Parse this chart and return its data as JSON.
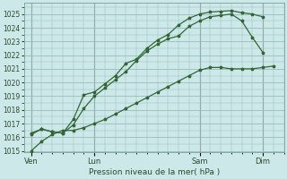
{
  "xlabel": "Pression niveau de la mer( hPa )",
  "bg_color": "#cce8e8",
  "grid_color": "#99bbbb",
  "line_color": "#336633",
  "ylim": [
    1015,
    1025.5
  ],
  "yticks": [
    1015,
    1016,
    1017,
    1018,
    1019,
    1020,
    1021,
    1022,
    1023,
    1024,
    1025
  ],
  "xtick_labels": [
    "Ven",
    "Lun",
    "Sam",
    "Dim"
  ],
  "xtick_positions": [
    0,
    36,
    96,
    132
  ],
  "xlim": [
    -4,
    144
  ],
  "vline_positions": [
    0,
    36,
    96,
    132
  ],
  "vline_color": "#667777",
  "line1_x": [
    0,
    6,
    12,
    18,
    24,
    30,
    36,
    42,
    48,
    54,
    60,
    66,
    72,
    78,
    84,
    90,
    96,
    102,
    108,
    114,
    120,
    126,
    132,
    138
  ],
  "line1_y": [
    1015.0,
    1015.7,
    1016.2,
    1016.5,
    1016.5,
    1016.7,
    1017.0,
    1017.3,
    1017.7,
    1018.1,
    1018.5,
    1018.9,
    1019.3,
    1019.7,
    1020.1,
    1020.5,
    1020.9,
    1021.1,
    1021.1,
    1021.0,
    1021.0,
    1021.0,
    1021.1,
    1021.2
  ],
  "line2_x": [
    0,
    6,
    12,
    18,
    24,
    30,
    36,
    42,
    48,
    54,
    60,
    66,
    72,
    78,
    84,
    90,
    96,
    102,
    108,
    114,
    120,
    126,
    132
  ],
  "line2_y": [
    1016.3,
    1016.6,
    1016.4,
    1016.3,
    1016.9,
    1018.1,
    1019.0,
    1019.6,
    1020.2,
    1020.8,
    1021.6,
    1022.3,
    1022.8,
    1023.2,
    1023.4,
    1024.1,
    1024.5,
    1024.8,
    1024.9,
    1025.0,
    1024.5,
    1023.3,
    1022.2
  ],
  "line3_x": [
    0,
    6,
    12,
    18,
    24,
    30,
    36,
    42,
    48,
    54,
    60,
    66,
    72,
    78,
    84,
    90,
    96,
    102,
    108,
    114,
    120,
    126,
    132
  ],
  "line3_y": [
    1016.2,
    1016.6,
    1016.4,
    1016.3,
    1017.3,
    1019.1,
    1019.3,
    1019.9,
    1020.5,
    1021.4,
    1021.7,
    1022.5,
    1023.1,
    1023.5,
    1024.2,
    1024.7,
    1025.0,
    1025.15,
    1025.2,
    1025.25,
    1025.1,
    1025.0,
    1024.8
  ]
}
